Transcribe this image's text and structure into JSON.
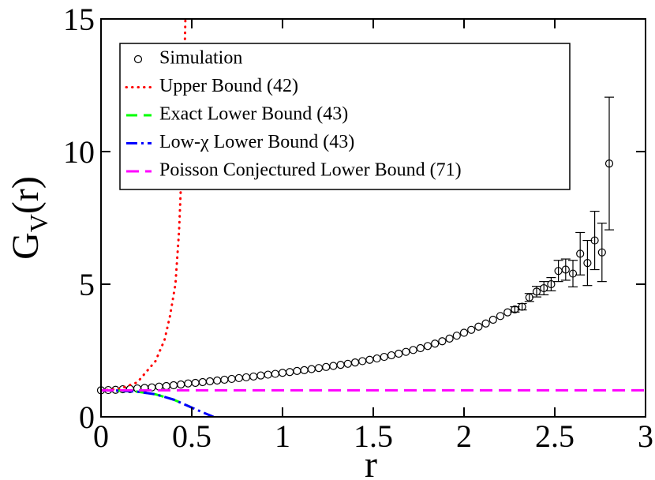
{
  "chart_data": {
    "type": "scatter",
    "xlabel": "r",
    "ylabel": {
      "main": "G",
      "sub": "V",
      "rest": "(r)"
    },
    "xlim": [
      0,
      3
    ],
    "ylim": [
      0,
      15
    ],
    "xticks": [
      0,
      0.5,
      1,
      1.5,
      2,
      2.5,
      3
    ],
    "yticks": [
      0,
      5,
      10,
      15
    ],
    "legend": "upper-left",
    "series": [
      {
        "name": "Simulation",
        "kind": "points",
        "color": "#000000",
        "x": [
          0,
          0.04,
          0.08,
          0.12,
          0.16,
          0.2,
          0.24,
          0.28,
          0.32,
          0.36,
          0.4,
          0.44,
          0.48,
          0.52,
          0.56,
          0.6,
          0.64,
          0.68,
          0.72,
          0.76,
          0.8,
          0.84,
          0.88,
          0.92,
          0.96,
          1.0,
          1.04,
          1.08,
          1.12,
          1.16,
          1.2,
          1.24,
          1.28,
          1.32,
          1.36,
          1.4,
          1.44,
          1.48,
          1.52,
          1.56,
          1.6,
          1.64,
          1.68,
          1.72,
          1.76,
          1.8,
          1.84,
          1.88,
          1.92,
          1.96,
          2.0,
          2.04,
          2.08,
          2.12,
          2.16,
          2.2,
          2.24,
          2.28,
          2.32,
          2.36,
          2.4,
          2.44,
          2.48,
          2.52,
          2.56,
          2.6,
          2.64,
          2.68,
          2.72,
          2.76,
          2.8
        ],
        "values": [
          1.0,
          1.01,
          1.02,
          1.04,
          1.05,
          1.07,
          1.09,
          1.11,
          1.14,
          1.16,
          1.19,
          1.22,
          1.26,
          1.28,
          1.31,
          1.34,
          1.37,
          1.4,
          1.43,
          1.46,
          1.49,
          1.52,
          1.56,
          1.59,
          1.62,
          1.66,
          1.69,
          1.73,
          1.76,
          1.8,
          1.84,
          1.88,
          1.92,
          1.96,
          2.0,
          2.05,
          2.1,
          2.15,
          2.2,
          2.26,
          2.32,
          2.38,
          2.45,
          2.52,
          2.59,
          2.67,
          2.76,
          2.85,
          2.95,
          3.06,
          3.17,
          3.28,
          3.4,
          3.52,
          3.66,
          3.8,
          3.94,
          4.05,
          4.15,
          4.5,
          4.72,
          4.85,
          5.0,
          5.5,
          5.55,
          5.4,
          6.15,
          5.8,
          6.65,
          6.2,
          9.55
        ],
        "errors": [
          null,
          null,
          null,
          null,
          null,
          null,
          null,
          null,
          null,
          null,
          null,
          null,
          null,
          null,
          null,
          null,
          null,
          null,
          null,
          null,
          null,
          null,
          null,
          null,
          null,
          null,
          null,
          null,
          null,
          null,
          null,
          null,
          null,
          null,
          null,
          null,
          null,
          null,
          null,
          null,
          null,
          null,
          null,
          null,
          null,
          null,
          null,
          null,
          null,
          null,
          null,
          null,
          null,
          null,
          null,
          null,
          null,
          0.1,
          0.12,
          0.15,
          0.2,
          0.25,
          0.25,
          0.4,
          0.4,
          0.5,
          0.8,
          0.85,
          1.1,
          1.1,
          2.5
        ]
      },
      {
        "name": "Upper Bound (42)",
        "kind": "dotted",
        "color": "#ff0000",
        "x": [
          0,
          0.1,
          0.2,
          0.3,
          0.35,
          0.38,
          0.41,
          0.43,
          0.448,
          0.465
        ],
        "values": [
          1,
          1.05,
          1.3,
          2.1,
          2.9,
          3.8,
          5.0,
          7.0,
          10,
          15
        ]
      },
      {
        "name": "Exact Lower Bound (43)",
        "kind": "dashed",
        "color": "#00ff00",
        "x": [
          0,
          0.1,
          0.2,
          0.3,
          0.4,
          0.5
        ],
        "values": [
          1,
          0.99,
          0.95,
          0.85,
          0.65,
          0.35
        ]
      },
      {
        "name": "Low-χ Lower Bound (43)",
        "kind": "dashdot",
        "color": "#0000ff",
        "x": [
          0,
          0.1,
          0.2,
          0.3,
          0.4,
          0.5,
          0.55,
          0.62
        ],
        "values": [
          1,
          0.99,
          0.95,
          0.85,
          0.65,
          0.35,
          0.2,
          0
        ]
      },
      {
        "name": "Poisson Conjectured Lower Bound (71)",
        "kind": "longdash",
        "color": "#ff00ff",
        "x": [
          0,
          3
        ],
        "values": [
          1,
          1
        ]
      }
    ]
  }
}
